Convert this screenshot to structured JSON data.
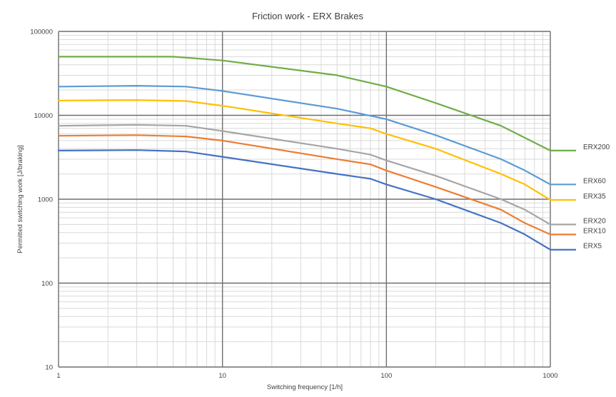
{
  "chart_data": {
    "type": "line",
    "title": "Friction work - ERX Brakes",
    "xlabel": "Switching frequency [1/h]",
    "ylabel": "Permitted switching work [J/braking]",
    "x_scale": "log",
    "y_scale": "log",
    "xlim": [
      1,
      1000
    ],
    "ylim": [
      10,
      100000
    ],
    "x_ticks": [
      "1",
      "10",
      "100",
      "1000"
    ],
    "y_ticks": [
      "10",
      "100",
      "1000",
      "10000",
      "100000"
    ],
    "grid": true,
    "series": [
      {
        "name": "ERX200",
        "color": "#70ad47",
        "points": [
          [
            1,
            50000
          ],
          [
            5,
            50000
          ],
          [
            10,
            45000
          ],
          [
            50,
            30000
          ],
          [
            100,
            22000
          ],
          [
            200,
            14000
          ],
          [
            500,
            7500
          ],
          [
            1000,
            3800
          ]
        ]
      },
      {
        "name": "ERX60",
        "color": "#5b9bd5",
        "points": [
          [
            1,
            22000
          ],
          [
            3,
            22500
          ],
          [
            6,
            22000
          ],
          [
            10,
            19500
          ],
          [
            50,
            12000
          ],
          [
            100,
            9000
          ],
          [
            200,
            5800
          ],
          [
            500,
            3000
          ],
          [
            700,
            2200
          ],
          [
            1000,
            1500
          ]
        ]
      },
      {
        "name": "ERX35",
        "color": "#ffc000",
        "points": [
          [
            1,
            15000
          ],
          [
            3,
            15200
          ],
          [
            6,
            14800
          ],
          [
            10,
            13000
          ],
          [
            50,
            8000
          ],
          [
            80,
            7000
          ],
          [
            100,
            6000
          ],
          [
            200,
            4000
          ],
          [
            500,
            2000
          ],
          [
            700,
            1500
          ],
          [
            1000,
            980
          ]
        ]
      },
      {
        "name": "ERX20",
        "color": "#a5a5a5",
        "points": [
          [
            1,
            7500
          ],
          [
            3,
            7700
          ],
          [
            6,
            7500
          ],
          [
            10,
            6500
          ],
          [
            50,
            4000
          ],
          [
            80,
            3400
          ],
          [
            100,
            2900
          ],
          [
            200,
            1900
          ],
          [
            500,
            1000
          ],
          [
            700,
            750
          ],
          [
            1000,
            500
          ]
        ]
      },
      {
        "name": "ERX10",
        "color": "#ed7d31",
        "points": [
          [
            1,
            5700
          ],
          [
            3,
            5800
          ],
          [
            6,
            5600
          ],
          [
            10,
            5000
          ],
          [
            50,
            3000
          ],
          [
            80,
            2600
          ],
          [
            100,
            2200
          ],
          [
            200,
            1400
          ],
          [
            500,
            750
          ],
          [
            700,
            520
          ],
          [
            1000,
            380
          ]
        ]
      },
      {
        "name": "ERX5",
        "color": "#4472c4",
        "points": [
          [
            1,
            3800
          ],
          [
            3,
            3850
          ],
          [
            6,
            3700
          ],
          [
            10,
            3200
          ],
          [
            50,
            2000
          ],
          [
            80,
            1750
          ],
          [
            100,
            1500
          ],
          [
            200,
            1000
          ],
          [
            500,
            520
          ],
          [
            700,
            380
          ],
          [
            1000,
            250
          ]
        ]
      }
    ]
  }
}
